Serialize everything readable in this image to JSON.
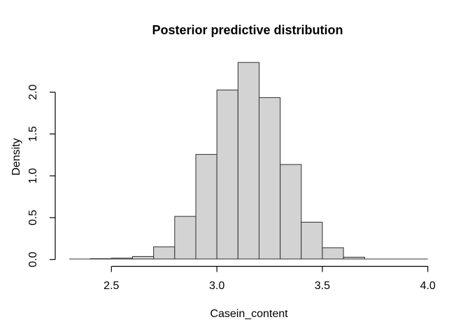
{
  "chart_data": {
    "type": "bar",
    "variant": "histogram",
    "title": "Posterior predictive distribution",
    "xlabel": "Casein_content",
    "ylabel": "Density",
    "bin_edges": [
      2.3,
      2.4,
      2.5,
      2.6,
      2.7,
      2.8,
      2.9,
      3.0,
      3.1,
      3.2,
      3.3,
      3.4,
      3.5,
      3.6,
      3.7,
      3.8,
      3.9,
      4.0
    ],
    "densities": [
      0,
      0.004,
      0.01,
      0.03,
      0.145,
      0.51,
      1.25,
      2.02,
      2.35,
      1.93,
      1.13,
      0.44,
      0.135,
      0.022,
      0,
      0,
      0
    ],
    "x_ticks": [
      {
        "value": 2.5,
        "label": "2.5"
      },
      {
        "value": 3.0,
        "label": "3.0"
      },
      {
        "value": 3.5,
        "label": "3.5"
      },
      {
        "value": 4.0,
        "label": "4.0"
      }
    ],
    "y_ticks": [
      {
        "value": 0.0,
        "label": "0.0"
      },
      {
        "value": 0.5,
        "label": "0.5"
      },
      {
        "value": 1.0,
        "label": "1.0"
      },
      {
        "value": 1.5,
        "label": "1.5"
      },
      {
        "value": 2.0,
        "label": "2.0"
      }
    ],
    "xlim": [
      2.3,
      4.0
    ],
    "ylim": [
      0,
      2.35
    ],
    "grid": false,
    "legend": "none",
    "colors": {
      "bar_fill": "#d3d3d3",
      "bar_border": "#2f2f2f",
      "axis": "#000000",
      "background": "#ffffff"
    }
  }
}
